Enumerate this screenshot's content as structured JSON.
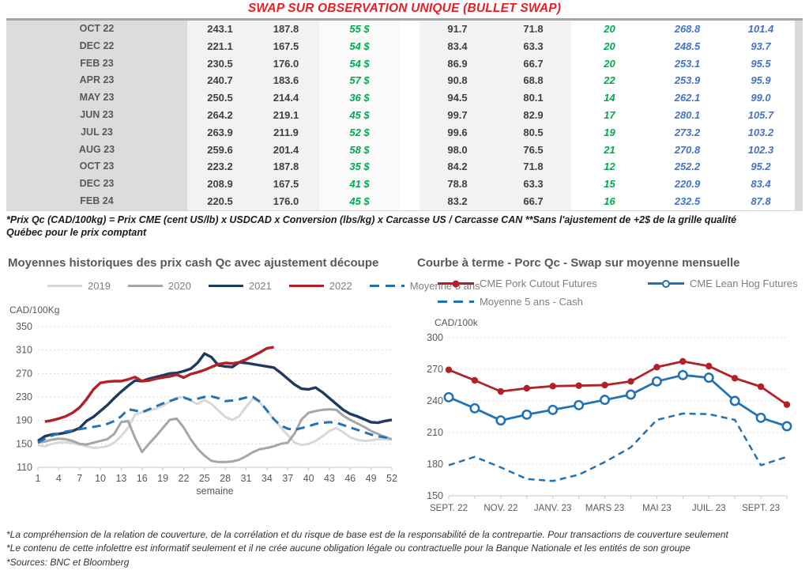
{
  "title": "SWAP SUR OBSERVATION UNIQUE (BULLET SWAP)",
  "colors": {
    "title_red": "#ed1c24",
    "table_green": "#00a94e",
    "table_blue": "#4472c4",
    "grid": "#d9d9d9",
    "axis": "#c6c6c6",
    "label_gray": "#595959"
  },
  "table": {
    "rows": [
      [
        "OCT 22",
        "243.1",
        "187.8",
        "55 $",
        "91.7",
        "71.8",
        "20",
        "268.8",
        "101.4"
      ],
      [
        "DEC 22",
        "221.1",
        "167.5",
        "54 $",
        "83.4",
        "63.3",
        "20",
        "248.5",
        "93.7"
      ],
      [
        "FEB 23",
        "230.5",
        "176.0",
        "54 $",
        "86.9",
        "66.7",
        "20",
        "253.1",
        "95.5"
      ],
      [
        "APR 23",
        "240.7",
        "183.6",
        "57 $",
        "90.8",
        "68.8",
        "22",
        "253.9",
        "95.9"
      ],
      [
        "MAY 23",
        "250.5",
        "214.4",
        "36 $",
        "94.5",
        "80.1",
        "14",
        "262.1",
        "99.0"
      ],
      [
        "JUN 23",
        "264.2",
        "219.1",
        "45 $",
        "99.7",
        "82.9",
        "17",
        "280.1",
        "105.7"
      ],
      [
        "JUL 23",
        "263.9",
        "211.9",
        "52 $",
        "99.6",
        "80.5",
        "19",
        "273.2",
        "103.2"
      ],
      [
        "AUG 23",
        "259.6",
        "201.4",
        "58 $",
        "98.0",
        "76.5",
        "21",
        "270.8",
        "102.3"
      ],
      [
        "OCT 23",
        "223.2",
        "187.8",
        "35 $",
        "84.2",
        "71.8",
        "12",
        "252.2",
        "95.2"
      ],
      [
        "DEC 23",
        "208.9",
        "167.5",
        "41 $",
        "78.8",
        "63.3",
        "15",
        "220.9",
        "83.4"
      ],
      [
        "FEB 24",
        "220.5",
        "176.0",
        "45 $",
        "83.2",
        "66.7",
        "16",
        "232.5",
        "87.8"
      ]
    ]
  },
  "table_note_line1": "*Prix Qc (CAD/100kg) = Prix CME (cent US/lb) x USDCAD x Conversion (lbs/kg) x Carcasse US / Carcasse CAN **Sans l'ajustement de +2$ de la grille qualité",
  "table_note_line2": "Québec pour le prix comptant",
  "chart_data": [
    {
      "type": "line",
      "title": "Moyennes historiques des prix cash Qc avec ajustement découpe",
      "y_unit": "CAD/100Kg",
      "xlabel": "semaine",
      "ylim": [
        110,
        350
      ],
      "yticks": [
        110,
        150,
        190,
        230,
        270,
        310,
        350
      ],
      "x_range": [
        1,
        52
      ],
      "xticks": [
        1,
        4,
        7,
        10,
        13,
        16,
        19,
        22,
        25,
        28,
        31,
        34,
        37,
        40,
        43,
        46,
        49,
        52
      ],
      "grid": "dashed",
      "legend_position": "top",
      "series": [
        {
          "name": "2019",
          "color": "#d8d8d8",
          "width": 3,
          "values": [
            148,
            146,
            150,
            152,
            153,
            151,
            149,
            146,
            143,
            144,
            146,
            152,
            163,
            178,
            200,
            204,
            207,
            210,
            215,
            222,
            229,
            230,
            224,
            218,
            225,
            218,
            207,
            196,
            191,
            197,
            213,
            228,
            220,
            207,
            192,
            178,
            165,
            152,
            148,
            150,
            155,
            163,
            172,
            177,
            170,
            161,
            157,
            155,
            156,
            158,
            158,
            157
          ]
        },
        {
          "name": "2020",
          "color": "#a6a6a6",
          "width": 3,
          "values": [
            152,
            154,
            157,
            159,
            158,
            155,
            150,
            149,
            152,
            155,
            158,
            167,
            187,
            189,
            160,
            136,
            150,
            163,
            177,
            191,
            193,
            178,
            158,
            142,
            130,
            121,
            119,
            119,
            120,
            123,
            129,
            136,
            141,
            143,
            146,
            150,
            152,
            168,
            192,
            203,
            206,
            208,
            209,
            208,
            198,
            191,
            185,
            179,
            172,
            167,
            162,
            158
          ]
        },
        {
          "name": "2021",
          "color": "#1f3a5f",
          "width": 3.4,
          "values": [
            155,
            163,
            166,
            167,
            169,
            172,
            177,
            189,
            196,
            206,
            216,
            228,
            239,
            249,
            258,
            257,
            261,
            264,
            267,
            270,
            271,
            274,
            278,
            288,
            304,
            298,
            284,
            282,
            281,
            289,
            288,
            286,
            284,
            282,
            280,
            271,
            261,
            251,
            244,
            243,
            246,
            238,
            228,
            218,
            208,
            201,
            197,
            192,
            187,
            186,
            189,
            191
          ]
        },
        {
          "name": "2022",
          "color": "#b22028",
          "width": 3.4,
          "values": [
            null,
            188,
            190,
            193,
            197,
            203,
            212,
            226,
            243,
            254,
            256,
            257,
            257,
            260,
            264,
            257,
            258,
            261,
            263,
            265,
            268,
            263,
            269,
            272,
            276,
            281,
            286,
            288,
            287,
            289,
            294,
            300,
            306,
            313,
            315,
            null,
            null,
            null,
            null,
            null,
            null,
            null,
            null,
            null,
            null,
            null,
            null,
            null,
            null,
            null,
            null,
            null
          ]
        },
        {
          "name": "Moyenne 5 ans",
          "color": "#2273b5",
          "width": 3,
          "dash": "11 7",
          "values": [
            152,
            159,
            164,
            168,
            171,
            173,
            175,
            177,
            179,
            181,
            184,
            189,
            197,
            209,
            207,
            204,
            209,
            214,
            219,
            223,
            227,
            229,
            225,
            227,
            230,
            231,
            228,
            223,
            224,
            226,
            229,
            230,
            222,
            207,
            192,
            181,
            176,
            174,
            177,
            180,
            184,
            186,
            187,
            186,
            182,
            178,
            174,
            170,
            166,
            163,
            161,
            159
          ]
        }
      ]
    },
    {
      "type": "line",
      "title": "Courbe à terme - Porc Qc - Swap sur moyenne mensuelle",
      "y_unit": "CAD/100k",
      "ylim": [
        150,
        300
      ],
      "yticks": [
        150,
        180,
        210,
        240,
        270,
        300
      ],
      "x_tick_labels": [
        "SEPT. 22",
        "NOV. 22",
        "JANV. 23",
        "MARS 23",
        "MAI 23",
        "JUIL. 23",
        "SEPT. 23"
      ],
      "label_every": 2,
      "grid": "dashed",
      "legend_position": "top",
      "series": [
        {
          "name": "CME Pork Cutout Futures",
          "color": "#b22028",
          "width": 2.8,
          "marker": "filled",
          "values": [
            269.5,
            259.5,
            249,
            252,
            254,
            254.5,
            255,
            258.5,
            272,
            277.5,
            273,
            261.5,
            253.5,
            236.5
          ]
        },
        {
          "name": "CME Lean Hog Futures",
          "color": "#2273b5",
          "width": 2.8,
          "marker": "open",
          "values": [
            243.5,
            233,
            221.5,
            227,
            231.5,
            236,
            241,
            246,
            258.5,
            264.5,
            262,
            240,
            224,
            216
          ]
        },
        {
          "name": "Moyenne 5 ans - Cash",
          "color": "#2273b5",
          "width": 2.5,
          "dash": "8 5.5",
          "values": [
            179,
            187,
            177,
            166,
            164,
            170,
            182,
            196,
            222,
            228,
            227.5,
            222,
            179,
            187
          ]
        }
      ]
    }
  ],
  "footer_lines": [
    "*La compréhension de la relation de couverture, de la corrélation et du risque de base est de la responsabilité de la contrepartie. Pour transactions de couverture seulement",
    "*Le contenu de cette infolettre est informatif seulement et il ne crée aucune obligation légale ou contractuelle pour la Banque Nationale et les entités de son groupe",
    "*Sources: BNC et Bloomberg"
  ]
}
